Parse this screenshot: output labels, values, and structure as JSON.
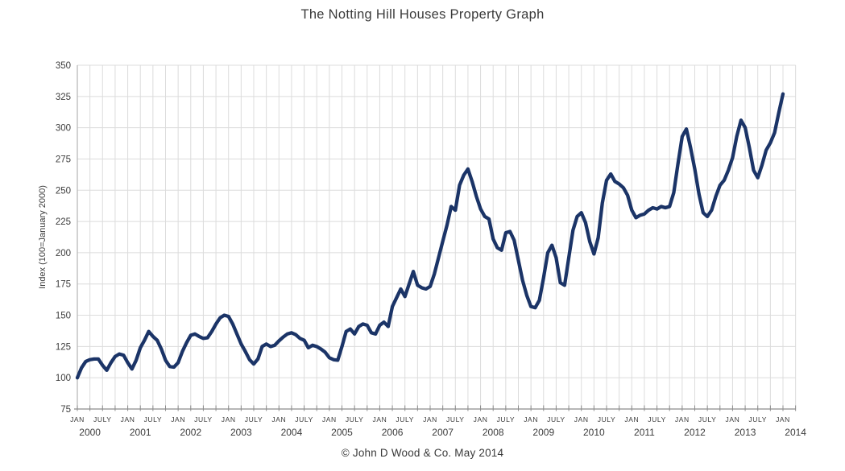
{
  "title": "The Notting Hill Houses Property Graph",
  "footer": "© John D Wood & Co. May 2014",
  "chart_data": {
    "type": "line",
    "title": "The Notting Hill Houses Property Graph",
    "xlabel": "",
    "ylabel": "Index (100=January 2000)",
    "ylim": [
      75,
      350
    ],
    "y_ticks": [
      75,
      100,
      125,
      150,
      175,
      200,
      225,
      250,
      275,
      300,
      325,
      350
    ],
    "x_years": [
      "2000",
      "2001",
      "2002",
      "2003",
      "2004",
      "2005",
      "2006",
      "2007",
      "2008",
      "2009",
      "2010",
      "2011",
      "2012",
      "2013",
      "2014"
    ],
    "x_month_labels": [
      "JAN",
      "JULY"
    ],
    "x_range_months": [
      "2000-01",
      "2014-01"
    ],
    "grid": "vertical gridlines quarterly, horizontal gridlines every 25 index points",
    "legend": "none",
    "annotation": "© John D Wood & Co. May 2014",
    "series": [
      {
        "name": "Index (100=January 2000)",
        "color": "#1B3467",
        "x_start": "2000-01",
        "x_step_months": 1,
        "values": [
          100,
          108,
          113,
          114.5,
          115,
          115,
          110,
          106,
          112,
          117,
          119,
          118,
          112,
          107,
          114,
          124,
          130,
          137,
          133,
          130,
          123,
          114,
          109,
          108.5,
          112,
          121,
          128,
          134,
          135,
          133,
          131.5,
          132,
          137,
          143,
          148,
          150,
          149,
          143,
          135,
          127,
          121,
          114.5,
          111,
          115,
          125,
          127,
          125,
          126,
          129.5,
          132.5,
          135,
          136,
          134.5,
          131.5,
          130,
          124,
          126,
          125,
          123,
          120.5,
          116,
          114.5,
          114,
          125,
          137,
          139,
          135,
          141,
          143,
          142,
          136,
          135,
          142,
          144.5,
          141,
          157,
          164,
          171,
          165,
          175,
          185,
          174,
          172,
          171,
          173,
          183,
          196,
          209,
          222,
          237,
          234,
          254,
          262,
          267,
          257,
          245,
          235,
          229,
          227,
          211,
          204,
          202,
          216,
          217,
          210,
          194,
          178,
          166,
          157,
          156,
          162,
          180,
          200,
          206,
          196,
          176,
          174,
          196,
          218,
          229,
          232,
          224,
          209,
          199,
          212,
          240,
          258,
          263,
          257,
          255,
          252,
          246,
          234,
          228,
          230,
          231,
          234,
          236,
          235,
          237,
          236,
          237,
          248,
          271,
          293,
          299,
          284,
          267,
          247,
          232,
          229,
          234,
          245,
          254,
          258,
          266,
          276,
          293,
          306,
          300,
          284,
          266,
          260,
          270,
          282,
          288,
          296,
          312,
          327
        ]
      }
    ],
    "style": {
      "line_width": 4.3,
      "grid_color": "#dcdcdc",
      "axis_color_bottom": "#8c8c8c",
      "axis_color_left": "#b4b4b4",
      "text_color": "#3c3c3c",
      "background": "#ffffff"
    }
  }
}
